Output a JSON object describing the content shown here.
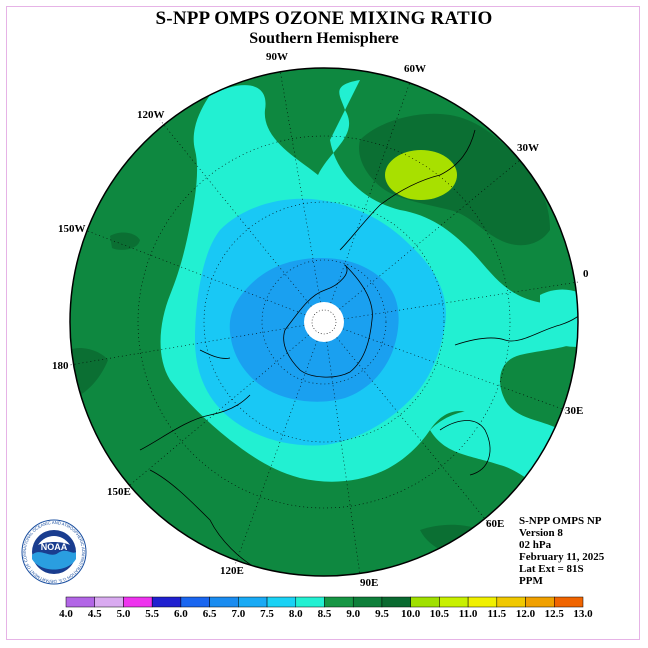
{
  "title": "S-NPP OMPS OZONE MIXING RATIO",
  "subtitle": "Southern Hemisphere",
  "longitude_labels": [
    "90W",
    "60W",
    "30W",
    "0",
    "30E",
    "60E",
    "90E",
    "120E",
    "150E",
    "180",
    "150W",
    "120W"
  ],
  "info": {
    "line1": "S-NPP OMPS NP",
    "line2": "Version 8",
    "line3": "02 hPa",
    "line4": "February 11, 2025",
    "line5": "Lat Ext = 81S",
    "line6": "PPM"
  },
  "logo": {
    "text": "NOAA",
    "ring_text": "NATIONAL OCEANIC AND ATMOSPHERIC ADMINISTRATION U.S. DEPARTMENT OF COMMERCE"
  },
  "colorbar": {
    "ticks": [
      "4.0",
      "4.5",
      "5.0",
      "5.5",
      "6.0",
      "6.5",
      "7.0",
      "7.5",
      "8.0",
      "8.5",
      "9.0",
      "9.5",
      "10.0",
      "10.5",
      "11.0",
      "11.5",
      "12.0",
      "12.5",
      "13.0"
    ],
    "colors": [
      "#b266e6",
      "#d9aaf0",
      "#ee33ee",
      "#2020d0",
      "#1a66f0",
      "#1a8cf0",
      "#19aaf5",
      "#1ad2f5",
      "#22f0d2",
      "#169644",
      "#0e7f3a",
      "#0a6a30",
      "#a0e000",
      "#c8f000",
      "#f0f000",
      "#f0c800",
      "#f0a000",
      "#f06400",
      "#f00000",
      "#8c5a3c"
    ]
  },
  "field_colors": {
    "ppm_8_0": "#0e8840",
    "ppm_8_5": "#0b6f33",
    "ppm_7_5": "#22f0d2",
    "ppm_7_0": "#19c8f5",
    "ppm_6_5": "#1aa0f0",
    "ppm_9_5": "#a8e000"
  }
}
